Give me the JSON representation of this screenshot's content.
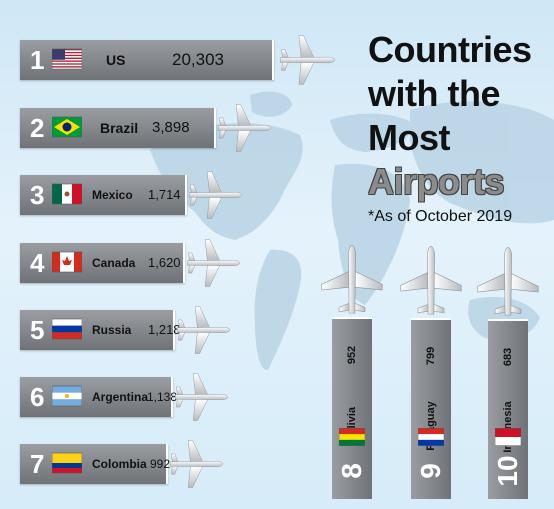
{
  "title": {
    "lines": [
      "Countries",
      "with the",
      "Most",
      "Airports"
    ],
    "subtitle": "*As of October 2019"
  },
  "colors": {
    "bar": "#80858a",
    "title_emphasis": "#8c8c8c",
    "background": "#d6ecf8"
  },
  "chart_data": {
    "type": "bar",
    "categories": [
      "US",
      "Brazil",
      "Mexico",
      "Canada",
      "Russia",
      "Argentina",
      "Colombia",
      "Bolivia",
      "Paraguay",
      "Indonesia"
    ],
    "ranks": [
      "1",
      "2",
      "3",
      "4",
      "5",
      "6",
      "7",
      "8",
      "9",
      "10"
    ],
    "values": [
      20303,
      3898,
      1714,
      1620,
      1218,
      1138,
      992,
      952,
      799,
      683
    ],
    "value_labels": [
      "20,303",
      "3,898",
      "1,714",
      "1,620",
      "1,218",
      "1,138",
      "992",
      "952",
      "799",
      "683"
    ],
    "flag_icons": [
      "us-flag-icon",
      "brazil-flag-icon",
      "mexico-flag-icon",
      "canada-flag-icon",
      "russia-flag-icon",
      "argentina-flag-icon",
      "colombia-flag-icon",
      "bolivia-flag-icon",
      "paraguay-flag-icon",
      "indonesia-flag-icon"
    ],
    "title": "Countries with the Most Airports",
    "subtitle": "*As of October 2019",
    "orientation": "ranks 1-7 horizontal, ranks 8-10 vertical",
    "xlabel": "",
    "ylabel": "",
    "grid": false,
    "legend": "none"
  }
}
